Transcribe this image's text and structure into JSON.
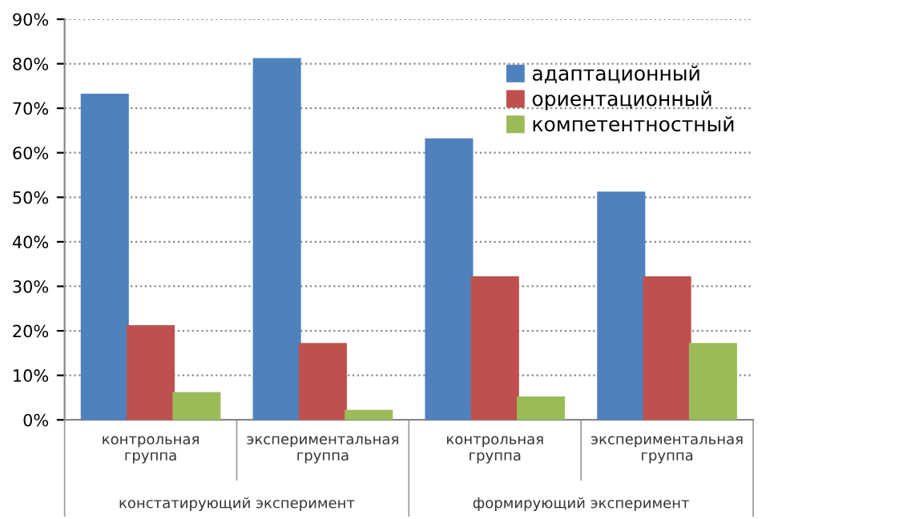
{
  "chart_data": {
    "type": "bar",
    "categories": [
      "контрольная\nгруппа",
      "экспериментальная\nгруппа",
      "контрольная\nгруппа",
      "экспериментальная\nгруппа"
    ],
    "series": [
      {
        "name": "адаптационный",
        "color": "#4f81bd",
        "values": [
          73,
          81,
          63,
          51
        ]
      },
      {
        "name": "ориентационный",
        "color": "#c0504d",
        "values": [
          21,
          17,
          32,
          32
        ]
      },
      {
        "name": "компетентностный",
        "color": "#9bbb59",
        "values": [
          6,
          2,
          5,
          17
        ]
      }
    ],
    "annotations": [
      "констатирующий эксперимент",
      "формирующий эксперимент"
    ],
    "ylim": [
      0,
      90
    ],
    "yticks": [
      {
        "value": 0,
        "label": "0%"
      },
      {
        "value": 10,
        "label": "10%"
      },
      {
        "value": 20,
        "label": "20%"
      },
      {
        "value": 30,
        "label": "30%"
      },
      {
        "value": 40,
        "label": "40%"
      },
      {
        "value": 50,
        "label": "50%"
      },
      {
        "value": 60,
        "label": "60%"
      },
      {
        "value": 70,
        "label": "70%"
      },
      {
        "value": 80,
        "label": "80%"
      },
      {
        "value": 90,
        "label": "90%"
      }
    ],
    "grid": "y",
    "legend": "top right"
  }
}
